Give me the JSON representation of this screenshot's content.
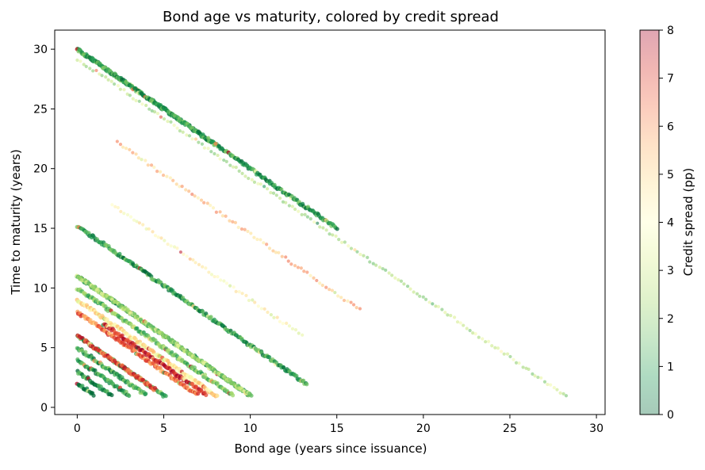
{
  "chart_data": {
    "type": "scatter",
    "title": "Bond age vs maturity, colored by credit spread",
    "xlabel": "Bond age (years since issuance)",
    "ylabel": "Time to maturity (years)",
    "xlim": [
      -1.3,
      30.5
    ],
    "ylim": [
      -0.6,
      31.6
    ],
    "xticks": [
      0,
      5,
      10,
      15,
      20,
      25,
      30
    ],
    "yticks": [
      0,
      5,
      10,
      15,
      20,
      25,
      30
    ],
    "grid": false,
    "colorbar": {
      "label": "Credit spread (pp)",
      "range": [
        0,
        8
      ],
      "ticks": [
        0,
        1,
        2,
        3,
        4,
        5,
        6,
        7,
        8
      ],
      "colormap": "RdYlGn_r",
      "stops": [
        "#006837",
        "#1a9850",
        "#66bd63",
        "#a6d96a",
        "#d9ef8b",
        "#ffffbf",
        "#fee08b",
        "#fdae61",
        "#f46d43",
        "#d73027",
        "#a50026"
      ],
      "alpha": 0.3
    },
    "series": [
      {
        "maturity": 30,
        "age_range": [
          0,
          15
        ],
        "spread": 0.9,
        "dense": true
      },
      {
        "maturity": 30,
        "age_range": [
          0,
          8.0
        ],
        "spread": 1.1,
        "dense": true
      },
      {
        "maturity": 29.2,
        "age_range": [
          0,
          29
        ],
        "spread": 2.6,
        "dense": false
      },
      {
        "maturity": 24.5,
        "age_range": [
          2.3,
          16.5
        ],
        "spread": 5.5,
        "dense": false
      },
      {
        "maturity": 19.0,
        "age_range": [
          2.0,
          13.0
        ],
        "spread": 4.0,
        "dense": false
      },
      {
        "maturity": 15.2,
        "age_range": [
          0,
          13.3
        ],
        "spread": 1.0,
        "dense": true
      },
      {
        "maturity": 11.0,
        "age_range": [
          0,
          11.0
        ],
        "spread": 1.0,
        "dense": true
      },
      {
        "maturity": 11.0,
        "age_range": [
          0,
          10.0
        ],
        "spread": 2.5,
        "dense": true
      },
      {
        "maturity": 10.0,
        "age_range": [
          0,
          9.0
        ],
        "spread": 1.8,
        "dense": true
      },
      {
        "maturity": 9.0,
        "age_range": [
          0,
          8.5
        ],
        "spread": 4.5,
        "dense": true
      },
      {
        "maturity": 8.0,
        "age_range": [
          0,
          7.0
        ],
        "spread": 6.3,
        "dense": true
      },
      {
        "maturity": 8.5,
        "age_range": [
          1.5,
          7.5
        ],
        "spread": 7.5,
        "dense": true
      },
      {
        "maturity": 6.0,
        "age_range": [
          0,
          5.5
        ],
        "spread": 1.5,
        "dense": true
      },
      {
        "maturity": 6.0,
        "age_range": [
          0,
          4.5
        ],
        "spread": 6.8,
        "dense": true
      },
      {
        "maturity": 5.0,
        "age_range": [
          0,
          4.0
        ],
        "spread": 1.2,
        "dense": true
      },
      {
        "maturity": 4.0,
        "age_range": [
          0,
          3.0
        ],
        "spread": 0.8,
        "dense": true
      },
      {
        "maturity": 3.0,
        "age_range": [
          0,
          2.0
        ],
        "spread": 0.5,
        "dense": true
      },
      {
        "maturity": 2.0,
        "age_range": [
          0,
          1.0
        ],
        "spread": 0.4,
        "dense": true
      }
    ]
  }
}
